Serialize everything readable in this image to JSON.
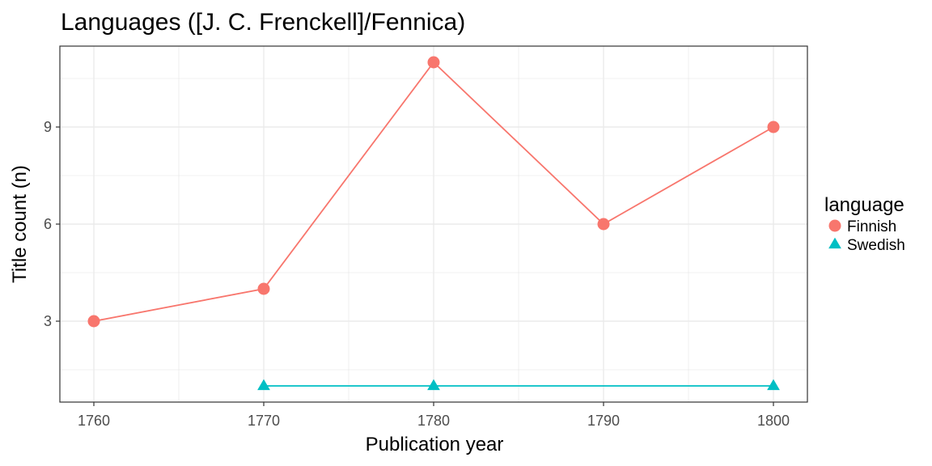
{
  "chart_data": {
    "type": "line",
    "title": "Languages ([J. C. Frenckell]/Fennica)",
    "xlabel": "Publication year",
    "ylabel": "Title count (n)",
    "xlim": [
      1758,
      1802
    ],
    "ylim": [
      0.5,
      11.5
    ],
    "x_ticks": [
      1760,
      1770,
      1780,
      1790,
      1800
    ],
    "y_ticks": [
      3,
      6,
      9
    ],
    "grid": true,
    "legend_title": "language",
    "legend_position": "right",
    "series": [
      {
        "name": "Finnish",
        "color": "#F8766D",
        "marker": "circle",
        "x": [
          1760,
          1770,
          1780,
          1790,
          1800
        ],
        "values": [
          3,
          4,
          11,
          6,
          9
        ]
      },
      {
        "name": "Swedish",
        "color": "#00BFC4",
        "marker": "triangle",
        "x": [
          1770,
          1780,
          1800
        ],
        "values": [
          1,
          1,
          1
        ]
      }
    ]
  }
}
